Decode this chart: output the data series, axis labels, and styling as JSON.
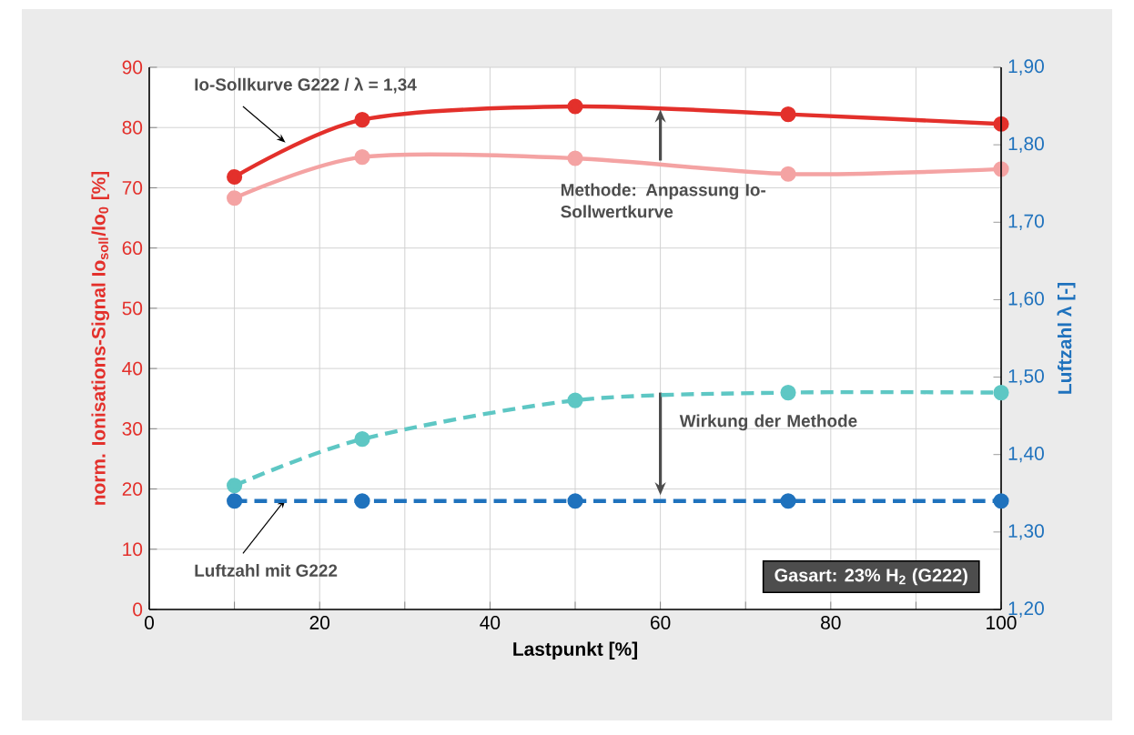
{
  "chart_data": {
    "type": "line",
    "xlabel": "Lastpunkt [%]",
    "ylabel": "norm. Ionisations-Signal Io$_{soll}$/Io$_{0}$ [%]",
    "y2label": "Luftzahl λ [-]",
    "x": [
      10,
      25,
      50,
      75,
      100
    ],
    "series": [
      {
        "color": "#e3302b",
        "values": [
          71.8,
          81.3,
          83.5,
          82.2,
          80.6
        ],
        "line_style": "solid"
      },
      {
        "color": "#f4a3a3",
        "values": [
          68.3,
          75.1,
          74.9,
          72.3,
          73.1
        ],
        "line_style": "solid"
      },
      {
        "color": "#5ec7c4",
        "values": [
          1.36,
          1.42,
          1.47,
          1.48,
          1.48
        ],
        "axis": "y2",
        "line_style": "dashed"
      },
      {
        "color": "#1f72bd",
        "values": [
          1.34,
          1.34,
          1.34,
          1.34,
          1.34
        ],
        "axis": "y2",
        "line_style": "dashed"
      }
    ],
    "xlim": [
      0,
      100
    ],
    "xticks": [
      0,
      {
        "value": 10,
        "label": null
      },
      20,
      {
        "value": 30,
        "label": null
      },
      40,
      {
        "value": 50,
        "label": null
      },
      60,
      {
        "value": 70,
        "label": null
      },
      80,
      {
        "value": 90,
        "label": null
      },
      100
    ],
    "ylim": [
      0,
      90
    ],
    "yticks": [
      0,
      10,
      20,
      30,
      40,
      50,
      60,
      70,
      80,
      90
    ],
    "y2lim": [
      1.2,
      1.9
    ],
    "y2ticks": [
      {
        "value": 1.2,
        "label": "1,20"
      },
      {
        "value": 1.3,
        "label": "1,30"
      },
      {
        "value": 1.4,
        "label": "1,40"
      },
      {
        "value": 1.5,
        "label": "1,50"
      },
      {
        "value": 1.6,
        "label": "1,60"
      },
      {
        "value": 1.7,
        "label": "1,70"
      },
      {
        "value": 1.8,
        "label": "1,80"
      },
      {
        "value": 1.9,
        "label": "1,90"
      }
    ],
    "annotations": [
      {
        "text": "Io-Sollkurve G222 / λ = 1,34",
        "x": 16,
        "y": 77.5
      },
      "Methode: Anpassung Io-Sollwertkurve",
      "Wirkung der Methode",
      {
        "text": "Luftzahl mit G222",
        "x": 16,
        "y": 18.3
      },
      "Gasart: 23% H$_{2}$ (G222)"
    ],
    "grid": true,
    "marker": "circle"
  }
}
